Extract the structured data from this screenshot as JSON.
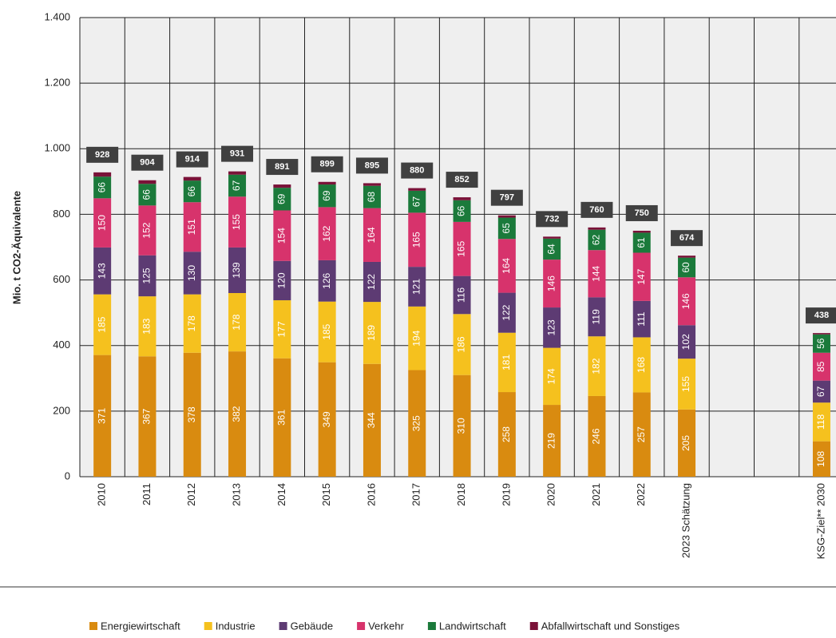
{
  "chart_data": {
    "type": "stacked-bar",
    "y_label": "Mio. t CO2-Äquivalente",
    "categories": [
      "2010",
      "2011",
      "2012",
      "2013",
      "2014",
      "2015",
      "2016",
      "2017",
      "2018",
      "2019",
      "2020",
      "2021",
      "2022",
      "2023 Schätzung",
      null,
      null,
      "KSG-Ziel** 2030"
    ],
    "series": [
      {
        "name": "Energiewirtschaft",
        "color": "#d98b10",
        "values": [
          371,
          367,
          378,
          382,
          361,
          349,
          344,
          325,
          310,
          258,
          219,
          246,
          257,
          205,
          null,
          null,
          108
        ]
      },
      {
        "name": "Industrie",
        "color": "#f5c11e",
        "values": [
          185,
          183,
          178,
          178,
          177,
          185,
          189,
          194,
          186,
          181,
          174,
          182,
          168,
          155,
          null,
          null,
          118
        ]
      },
      {
        "name": "Gebäude",
        "color": "#5d3b73",
        "values": [
          143,
          125,
          130,
          139,
          120,
          126,
          122,
          121,
          116,
          122,
          123,
          119,
          111,
          102,
          null,
          null,
          67
        ]
      },
      {
        "name": "Verkehr",
        "color": "#d7336c",
        "values": [
          150,
          152,
          151,
          155,
          154,
          162,
          164,
          165,
          165,
          164,
          146,
          144,
          147,
          146,
          null,
          null,
          85
        ]
      },
      {
        "name": "Landwirtschaft",
        "color": "#1b7a3b",
        "values": [
          66,
          66,
          66,
          67,
          69,
          69,
          68,
          67,
          66,
          65,
          64,
          62,
          61,
          60,
          null,
          null,
          56
        ]
      },
      {
        "name": "Abfallwirtschaft und Sonstiges",
        "color": "#7a1238",
        "values": [
          13,
          11,
          11,
          10,
          10,
          8,
          8,
          8,
          9,
          7,
          6,
          7,
          6,
          6,
          null,
          null,
          4
        ],
        "labeled": false
      }
    ],
    "totals": [
      928,
      904,
      914,
      931,
      891,
      899,
      895,
      880,
      852,
      797,
      732,
      760,
      750,
      674,
      null,
      null,
      438
    ],
    "ylim": [
      0,
      1400
    ],
    "yticks": [
      0,
      200,
      400,
      600,
      800,
      {
        "value": 1000,
        "label": "1.000"
      },
      {
        "value": 1200,
        "label": "1.200"
      },
      {
        "value": 1400,
        "label": "1.400"
      }
    ],
    "grid": true
  }
}
